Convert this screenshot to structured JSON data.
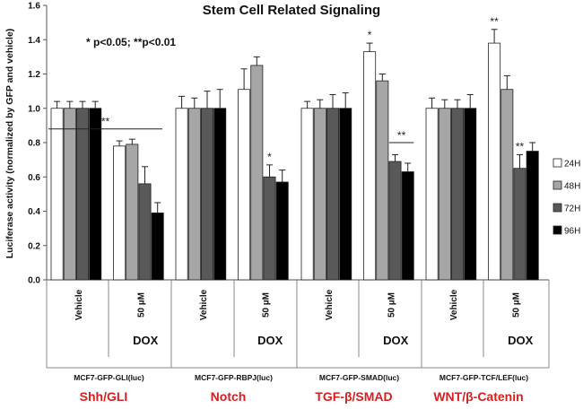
{
  "chart_data": {
    "type": "bar",
    "title": "Stem Cell Related Signaling",
    "ylabel": "Luciferase activity (normalized by GFP and vehicle)",
    "ylim": [
      0,
      1.6
    ],
    "yticks": [
      "0.0",
      "0.2",
      "0.4",
      "0.6",
      "0.8",
      "1.0",
      "1.2",
      "1.4",
      "1.6"
    ],
    "significance_note": "* p<0.05; **p<0.01",
    "legend": [
      "24H",
      "48H",
      "72H",
      "96H"
    ],
    "legend_position": "right",
    "series_colors": [
      "#ffffff",
      "#a6a6a6",
      "#595959",
      "#000000"
    ],
    "treatment_label": "DOX",
    "groups": [
      {
        "construct": "MCF7-GFP-GLI(luc)",
        "pathway": "Shh/GLI",
        "conditions": [
          {
            "label": "Vehicle",
            "values": [
              1.0,
              1.0,
              1.0,
              1.0
            ],
            "errors": [
              0.04,
              0.04,
              0.04,
              0.04
            ],
            "stars": [
              "",
              "",
              "",
              ""
            ]
          },
          {
            "label": "50 µM",
            "values": [
              0.78,
              0.79,
              0.56,
              0.39
            ],
            "errors": [
              0.03,
              0.03,
              0.1,
              0.06
            ],
            "stars": [
              "",
              "",
              "",
              ""
            ],
            "bracket": "**"
          }
        ]
      },
      {
        "construct": "MCF7-GFP-RBPJ(luc)",
        "pathway": "Notch",
        "conditions": [
          {
            "label": "Vehicle",
            "values": [
              1.0,
              1.0,
              1.0,
              1.0
            ],
            "errors": [
              0.07,
              0.06,
              0.1,
              0.11
            ],
            "stars": [
              "",
              "",
              "",
              ""
            ]
          },
          {
            "label": "50 µM",
            "values": [
              1.11,
              1.25,
              0.6,
              0.57
            ],
            "errors": [
              0.12,
              0.05,
              0.07,
              0.07
            ],
            "stars": [
              "",
              "",
              "*",
              ""
            ]
          }
        ]
      },
      {
        "construct": "MCF7-GFP-SMAD(luc)",
        "pathway": "TGF-β/SMAD",
        "conditions": [
          {
            "label": "Vehicle",
            "values": [
              1.0,
              1.0,
              1.0,
              1.0
            ],
            "errors": [
              0.04,
              0.05,
              0.08,
              0.09
            ],
            "stars": [
              "",
              "",
              "",
              ""
            ]
          },
          {
            "label": "50 µM",
            "values": [
              1.33,
              1.16,
              0.69,
              0.63
            ],
            "errors": [
              0.05,
              0.04,
              0.04,
              0.05
            ],
            "stars": [
              "*",
              "",
              "",
              ""
            ],
            "bracket": "**"
          }
        ]
      },
      {
        "construct": "MCF7-GFP-TCF/LEF(luc)",
        "pathway": "WNT/β-Catenin",
        "conditions": [
          {
            "label": "Vehicle",
            "values": [
              1.0,
              1.0,
              1.0,
              1.0
            ],
            "errors": [
              0.06,
              0.05,
              0.05,
              0.08
            ],
            "stars": [
              "",
              "",
              "",
              ""
            ]
          },
          {
            "label": "50 µM",
            "values": [
              1.38,
              1.11,
              0.65,
              0.75
            ],
            "errors": [
              0.08,
              0.08,
              0.08,
              0.05
            ],
            "stars": [
              "**",
              "",
              "**",
              ""
            ]
          }
        ]
      }
    ]
  }
}
